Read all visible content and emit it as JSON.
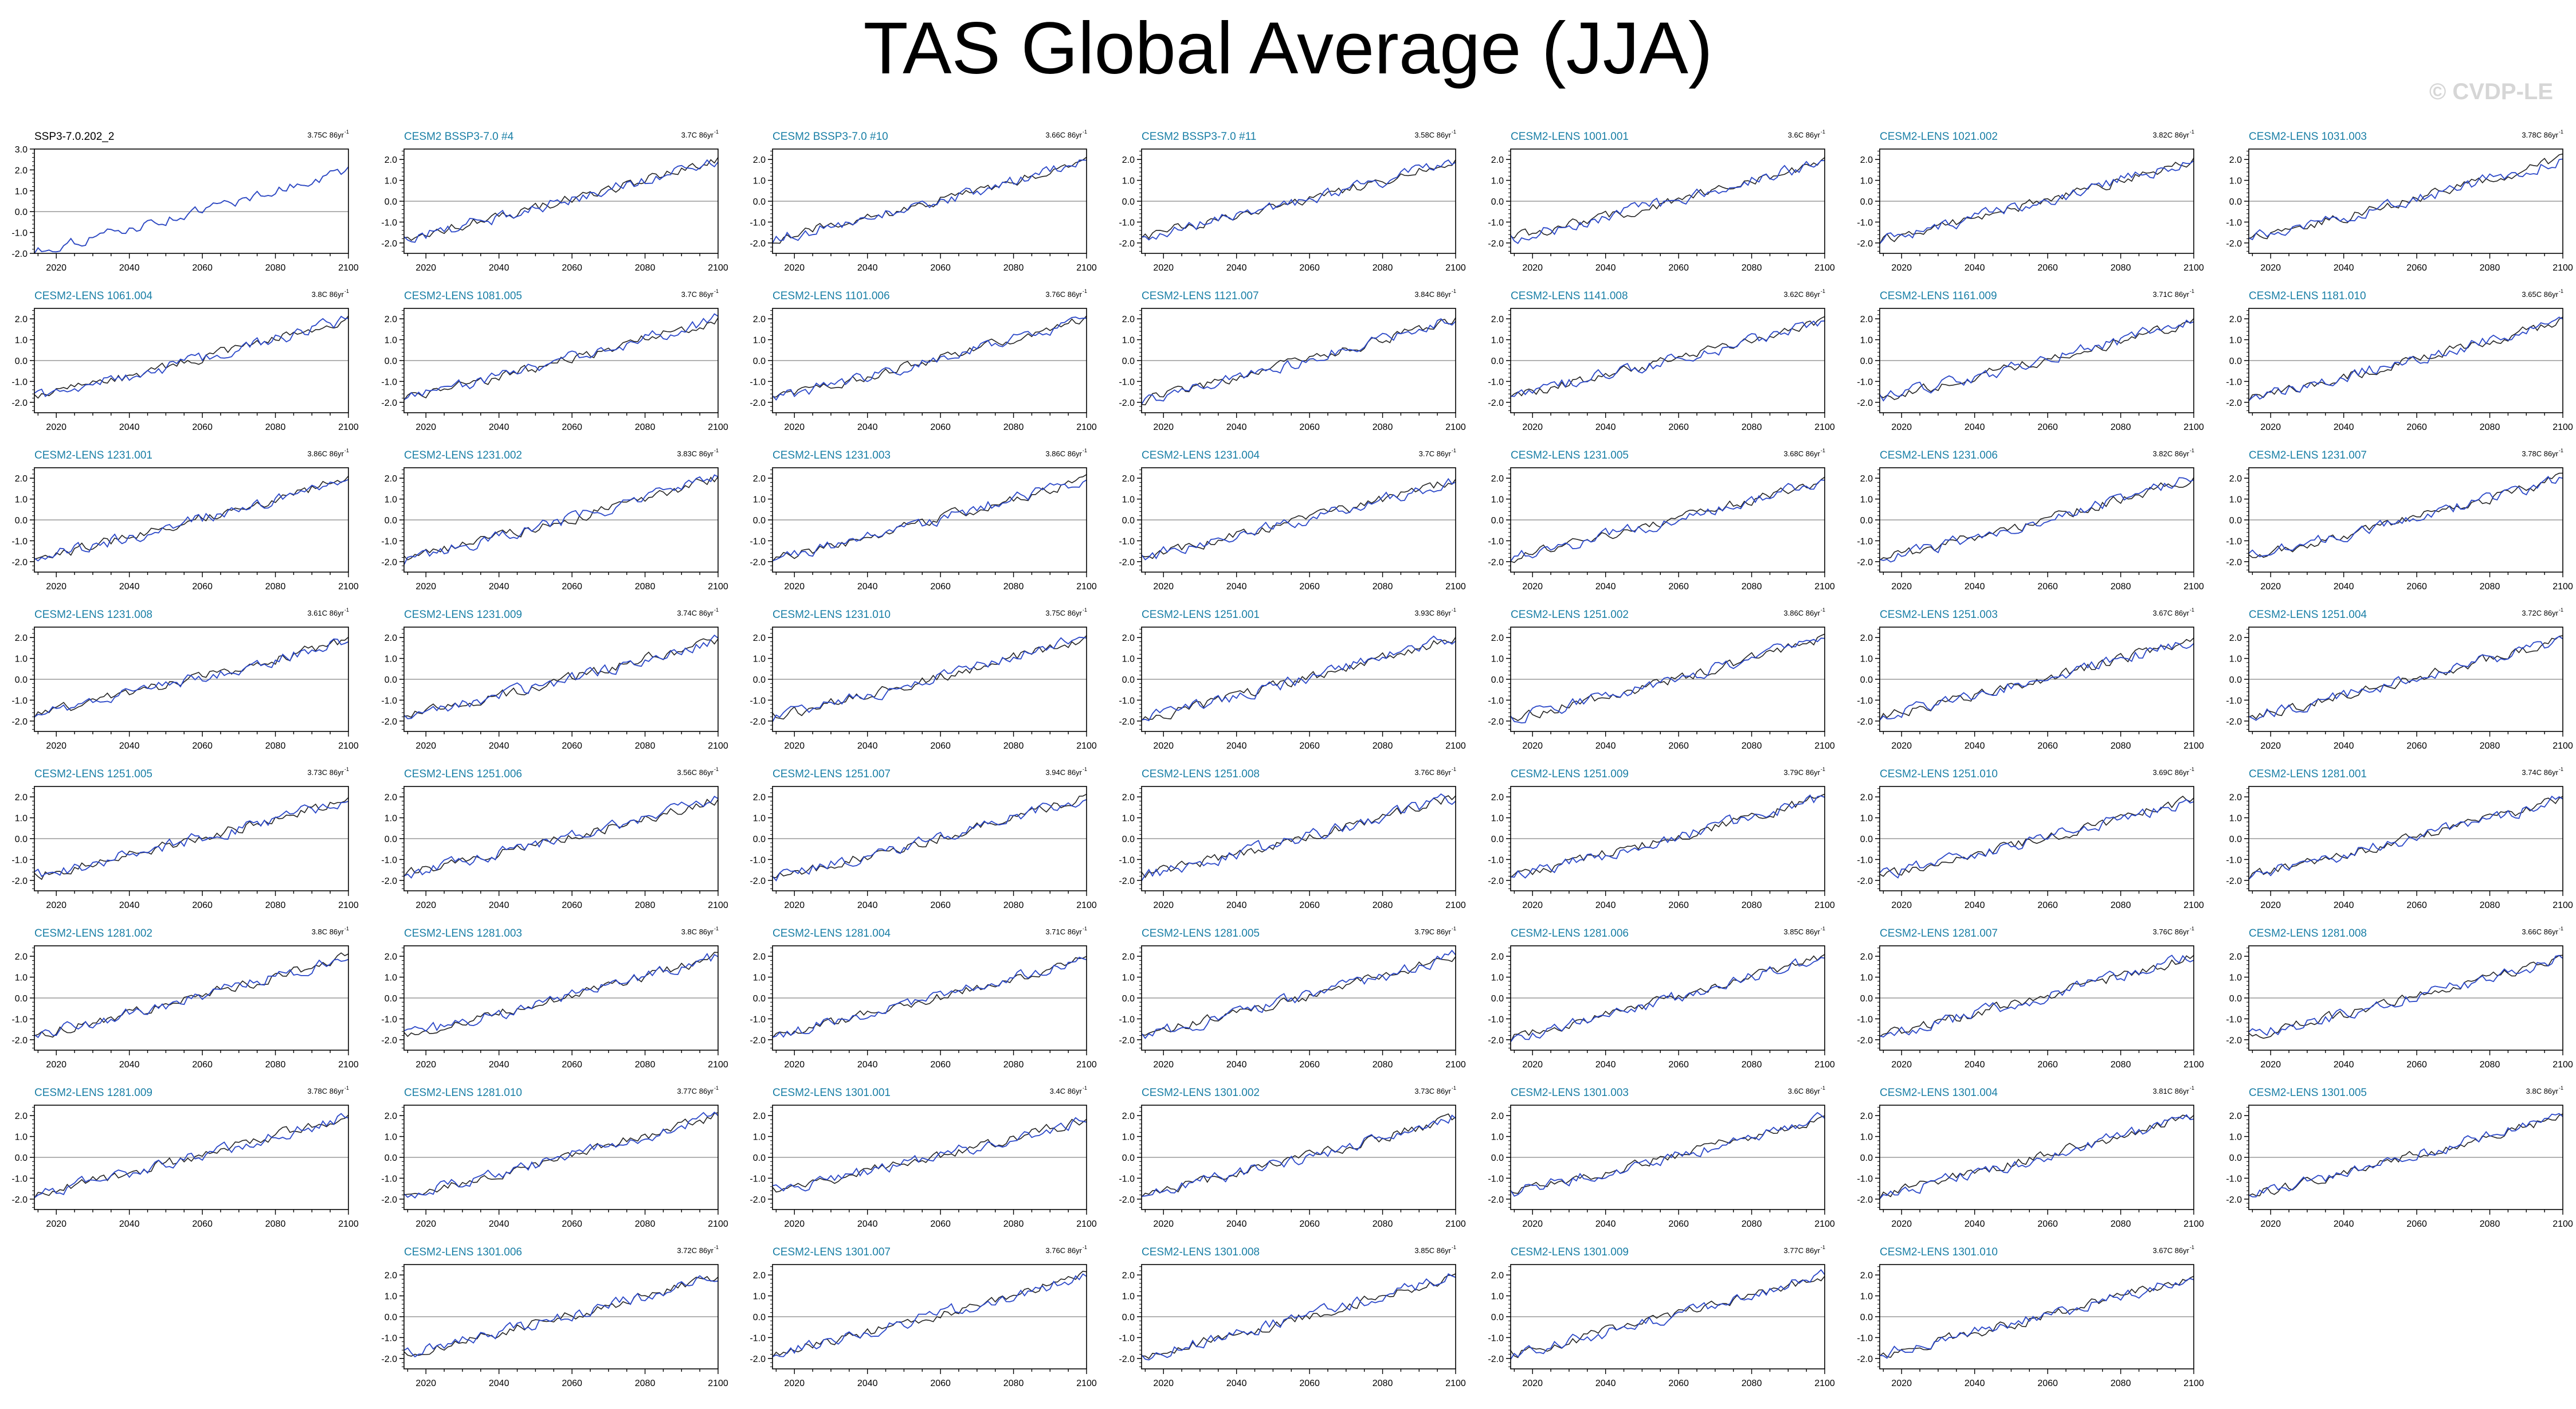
{
  "title": "TAS Global Average (JJA)",
  "watermark": "© CVDP-LE",
  "colors": {
    "observed": "#222222",
    "model": "#2a47c8",
    "member_title": "#1a7fa6",
    "zero_line": "#999999"
  },
  "chart_data": {
    "type": "line",
    "xlim": [
      2014,
      2100
    ],
    "xticks": [
      2020,
      2040,
      2060,
      2080,
      2100
    ],
    "panels": [
      {
        "title": "SSP3-7.0.202_2",
        "trend": "3.75C 86yr",
        "ylim": [
          -2.0,
          3.0
        ],
        "yticks": [
          "3.0",
          "2.0",
          "1.0",
          "0.0",
          "-1.0",
          "-2.0"
        ],
        "start": -1.9,
        "end": 2.0,
        "obs_only": true
      },
      {
        "title": "CESM2 BSSP3-7.0 #4",
        "trend": "3.7C 86yr",
        "start": -1.8,
        "end": 2.0
      },
      {
        "title": "CESM2 BSSP3-7.0 #10",
        "trend": "3.66C 86yr",
        "start": -1.8,
        "end": 1.9
      },
      {
        "title": "CESM2 BSSP3-7.0 #11",
        "trend": "3.58C 86yr",
        "start": -1.7,
        "end": 1.9
      },
      {
        "title": "CESM2-LENS 1001.001",
        "trend": "3.6C 86yr",
        "start": -1.8,
        "end": 1.9
      },
      {
        "title": "CESM2-LENS 1021.002",
        "trend": "3.82C 86yr",
        "start": -1.9,
        "end": 2.0
      },
      {
        "title": "CESM2-LENS 1031.003",
        "trend": "3.78C 86yr",
        "start": -1.8,
        "end": 2.0
      },
      {
        "title": "CESM2-LENS 1061.004",
        "trend": "3.8C 86yr",
        "start": -1.8,
        "end": 2.0
      },
      {
        "title": "CESM2-LENS 1081.005",
        "trend": "3.7C 86yr",
        "start": -1.8,
        "end": 2.0
      },
      {
        "title": "CESM2-LENS 1101.006",
        "trend": "3.76C 86yr",
        "start": -1.8,
        "end": 2.0
      },
      {
        "title": "CESM2-LENS 1121.007",
        "trend": "3.84C 86yr",
        "start": -1.9,
        "end": 2.0
      },
      {
        "title": "CESM2-LENS 1141.008",
        "trend": "3.62C 86yr",
        "start": -1.7,
        "end": 1.9
      },
      {
        "title": "CESM2-LENS 1161.009",
        "trend": "3.71C 86yr",
        "start": -1.8,
        "end": 1.9
      },
      {
        "title": "CESM2-LENS 1181.010",
        "trend": "3.65C 86yr",
        "start": -1.8,
        "end": 1.9
      },
      {
        "title": "CESM2-LENS 1231.001",
        "trend": "3.86C 86yr",
        "start": -1.9,
        "end": 2.0
      },
      {
        "title": "CESM2-LENS 1231.002",
        "trend": "3.83C 86yr",
        "start": -1.9,
        "end": 2.0
      },
      {
        "title": "CESM2-LENS 1231.003",
        "trend": "3.86C 86yr",
        "start": -1.9,
        "end": 2.0
      },
      {
        "title": "CESM2-LENS 1231.004",
        "trend": "3.7C 86yr",
        "start": -1.8,
        "end": 1.9
      },
      {
        "title": "CESM2-LENS 1231.005",
        "trend": "3.68C 86yr",
        "start": -1.8,
        "end": 1.9
      },
      {
        "title": "CESM2-LENS 1231.006",
        "trend": "3.82C 86yr",
        "start": -1.9,
        "end": 2.0
      },
      {
        "title": "CESM2-LENS 1231.007",
        "trend": "3.78C 86yr",
        "start": -1.8,
        "end": 2.0
      },
      {
        "title": "CESM2-LENS 1231.008",
        "trend": "3.61C 86yr",
        "start": -1.7,
        "end": 1.9
      },
      {
        "title": "CESM2-LENS 1231.009",
        "trend": "3.74C 86yr",
        "start": -1.8,
        "end": 1.9
      },
      {
        "title": "CESM2-LENS 1231.010",
        "trend": "3.75C 86yr",
        "start": -1.8,
        "end": 2.0
      },
      {
        "title": "CESM2-LENS 1251.001",
        "trend": "3.93C 86yr",
        "start": -1.9,
        "end": 2.0
      },
      {
        "title": "CESM2-LENS 1251.002",
        "trend": "3.86C 86yr",
        "start": -1.9,
        "end": 2.0
      },
      {
        "title": "CESM2-LENS 1251.003",
        "trend": "3.67C 86yr",
        "start": -1.8,
        "end": 1.9
      },
      {
        "title": "CESM2-LENS 1251.004",
        "trend": "3.72C 86yr",
        "start": -1.8,
        "end": 1.9
      },
      {
        "title": "CESM2-LENS 1251.005",
        "trend": "3.73C 86yr",
        "start": -1.8,
        "end": 1.9
      },
      {
        "title": "CESM2-LENS 1251.006",
        "trend": "3.56C 86yr",
        "start": -1.7,
        "end": 1.9
      },
      {
        "title": "CESM2-LENS 1251.007",
        "trend": "3.94C 86yr",
        "start": -1.9,
        "end": 2.0
      },
      {
        "title": "CESM2-LENS 1251.008",
        "trend": "3.76C 86yr",
        "start": -1.8,
        "end": 2.0
      },
      {
        "title": "CESM2-LENS 1251.009",
        "trend": "3.79C 86yr",
        "start": -1.8,
        "end": 2.0
      },
      {
        "title": "CESM2-LENS 1251.010",
        "trend": "3.69C 86yr",
        "start": -1.8,
        "end": 1.9
      },
      {
        "title": "CESM2-LENS 1281.001",
        "trend": "3.74C 86yr",
        "start": -1.8,
        "end": 1.9
      },
      {
        "title": "CESM2-LENS 1281.002",
        "trend": "3.8C 86yr",
        "start": -1.8,
        "end": 2.0
      },
      {
        "title": "CESM2-LENS 1281.003",
        "trend": "3.8C 86yr",
        "start": -1.8,
        "end": 2.0
      },
      {
        "title": "CESM2-LENS 1281.004",
        "trend": "3.71C 86yr",
        "start": -1.8,
        "end": 1.9
      },
      {
        "title": "CESM2-LENS 1281.005",
        "trend": "3.79C 86yr",
        "start": -1.8,
        "end": 2.0
      },
      {
        "title": "CESM2-LENS 1281.006",
        "trend": "3.85C 86yr",
        "start": -1.9,
        "end": 2.0
      },
      {
        "title": "CESM2-LENS 1281.007",
        "trend": "3.76C 86yr",
        "start": -1.8,
        "end": 2.0
      },
      {
        "title": "CESM2-LENS 1281.008",
        "trend": "3.66C 86yr",
        "start": -1.8,
        "end": 1.9
      },
      {
        "title": "CESM2-LENS 1281.009",
        "trend": "3.78C 86yr",
        "start": -1.8,
        "end": 2.0
      },
      {
        "title": "CESM2-LENS 1281.010",
        "trend": "3.77C 86yr",
        "start": -1.8,
        "end": 2.0
      },
      {
        "title": "CESM2-LENS 1301.001",
        "trend": "3.4C 86yr",
        "start": -1.6,
        "end": 1.8
      },
      {
        "title": "CESM2-LENS 1301.002",
        "trend": "3.73C 86yr",
        "start": -1.8,
        "end": 1.9
      },
      {
        "title": "CESM2-LENS 1301.003",
        "trend": "3.6C 86yr",
        "start": -1.7,
        "end": 1.9
      },
      {
        "title": "CESM2-LENS 1301.004",
        "trend": "3.81C 86yr",
        "start": -1.8,
        "end": 2.0
      },
      {
        "title": "CESM2-LENS 1301.005",
        "trend": "3.8C 86yr",
        "start": -1.8,
        "end": 2.0
      },
      {
        "title": "CESM2-LENS 1301.006",
        "trend": "3.72C 86yr",
        "start": -1.8,
        "end": 1.9
      },
      {
        "title": "CESM2-LENS 1301.007",
        "trend": "3.76C 86yr",
        "start": -1.8,
        "end": 2.0
      },
      {
        "title": "CESM2-LENS 1301.008",
        "trend": "3.85C 86yr",
        "start": -1.9,
        "end": 2.0
      },
      {
        "title": "CESM2-LENS 1301.009",
        "trend": "3.77C 86yr",
        "start": -1.8,
        "end": 2.0
      },
      {
        "title": "CESM2-LENS 1301.010",
        "trend": "3.67C 86yr",
        "start": -1.8,
        "end": 1.9
      }
    ],
    "default_ylim": [
      -2.5,
      2.5
    ],
    "default_yticks": [
      "2.0",
      "1.0",
      "0.0",
      "-1.0",
      "-2.0"
    ]
  }
}
